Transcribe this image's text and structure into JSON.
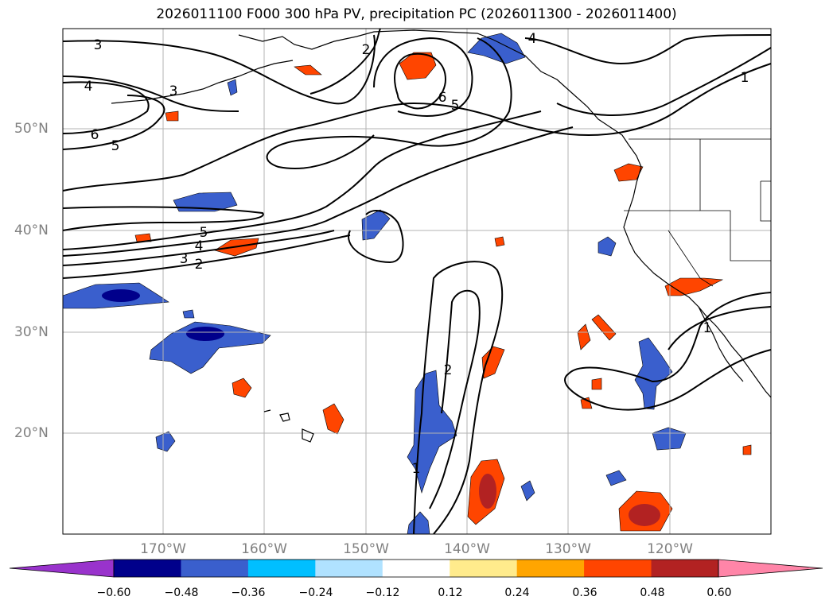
{
  "title": "2026011100 F000 300 hPa PV, precipitation PC (2026011300 - 2026011400)",
  "lat_labels": [
    "50°N",
    "40°N",
    "30°N",
    "20°N"
  ],
  "lon_labels": [
    "170°W",
    "160°W",
    "150°W",
    "140°W",
    "130°W",
    "120°W"
  ],
  "contour_labels": [
    "3",
    "2",
    "4",
    "4",
    "3",
    "6",
    "5",
    "6",
    "5",
    "1",
    "5",
    "4",
    "3",
    "2",
    "2",
    "1",
    "1"
  ],
  "colorbar": {
    "tick_labels": [
      "−0.60",
      "−0.48",
      "−0.36",
      "−0.24",
      "−0.12",
      "0.12",
      "0.24",
      "0.36",
      "0.48",
      "0.60"
    ],
    "colors": [
      "#9933cc",
      "#00008b",
      "#3a5fcd",
      "#00bfff",
      "#b0e2ff",
      "#ffffff",
      "#ffeb8c",
      "#ffa500",
      "#ff4500",
      "#b22222",
      "#ff85a8"
    ]
  }
}
